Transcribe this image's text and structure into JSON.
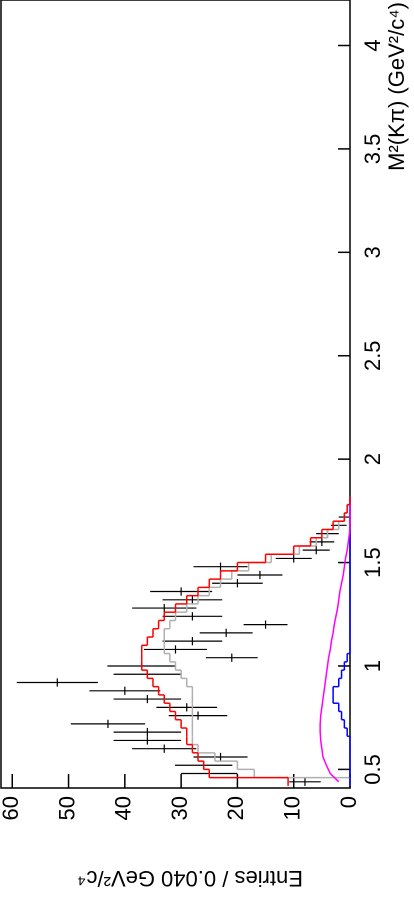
{
  "chart_data": {
    "type": "line",
    "xlabel": "M²(Kπ) (GeV²/c⁴)",
    "ylabel": "Entries / 0.040 GeV²/c⁴",
    "x": [
      0.44,
      0.48,
      0.52,
      0.56,
      0.6,
      0.64,
      0.68,
      0.72,
      0.76,
      0.8,
      0.84,
      0.88,
      0.92,
      0.96,
      1.0,
      1.04,
      1.08,
      1.12,
      1.16,
      1.2,
      1.24,
      1.28,
      1.32,
      1.36,
      1.4,
      1.44,
      1.48,
      1.52,
      1.56,
      1.6,
      1.64,
      1.68,
      1.72,
      1.76,
      1.8
    ],
    "series": [
      {
        "style": "errorbar",
        "color": "#000000",
        "values": [
          8,
          25,
          26,
          23,
          33,
          36,
          36,
          43,
          27,
          29,
          36,
          40,
          52,
          36,
          37,
          21,
          31,
          28,
          22,
          15,
          28,
          33,
          28,
          30,
          20,
          16,
          23,
          10,
          6,
          5,
          4,
          2,
          1,
          null,
          null
        ],
        "errors": [
          2.8,
          5,
          5.1,
          4.8,
          5.7,
          6,
          6,
          6.6,
          5.2,
          5.4,
          6,
          6.3,
          7.2,
          6,
          6.1,
          4.6,
          5.6,
          5.3,
          4.7,
          3.9,
          5.3,
          5.7,
          5.3,
          5.5,
          4.5,
          4,
          4.8,
          3.2,
          2.4,
          2.2,
          2,
          1.4,
          1,
          null,
          null
        ]
      },
      {
        "style": "step",
        "color": "#b0b0b0",
        "values": [
          0,
          17,
          20,
          24,
          27,
          28,
          28,
          28,
          28,
          28,
          28,
          28,
          29,
          30,
          31,
          32,
          33,
          33,
          33,
          32,
          31,
          29,
          27,
          25,
          23,
          21,
          18,
          14,
          9,
          6,
          4,
          2,
          1,
          0.5,
          0
        ]
      },
      {
        "style": "step",
        "color": "#0000ff",
        "values": [
          0,
          0,
          0,
          0,
          0,
          0,
          0.5,
          1,
          1.5,
          2,
          3,
          3,
          2,
          1.5,
          1,
          0.5,
          0,
          0,
          0,
          0,
          0,
          0,
          0,
          0,
          0,
          0,
          0,
          0,
          0,
          0,
          0,
          0,
          0,
          0,
          0
        ]
      },
      {
        "style": "line",
        "color": "#ff00ff",
        "values": [
          2,
          3.5,
          4.2,
          4.8,
          5,
          5.2,
          5.3,
          5.3,
          5.2,
          5,
          4.8,
          4.6,
          4.4,
          4.2,
          4,
          3.8,
          3.5,
          3.3,
          3,
          2.8,
          2.5,
          2.2,
          2,
          1.8,
          1.5,
          1.2,
          1,
          0.8,
          0.5,
          0.3,
          0.1,
          0,
          0,
          0,
          0
        ]
      },
      {
        "style": "step",
        "color": "#ff0000",
        "values": [
          11,
          25,
          26,
          27,
          28,
          29,
          29,
          30,
          31,
          32,
          33,
          34,
          35,
          36,
          37,
          37,
          37,
          36,
          35,
          34,
          33,
          31,
          29,
          27,
          25,
          23,
          20,
          15,
          10,
          7,
          5,
          3,
          1,
          0.5,
          0
        ]
      }
    ],
    "xlim": [
      0.41,
      4.22
    ],
    "xticks": [
      0.5,
      1,
      1.5,
      2,
      2.5,
      3,
      3.5,
      4
    ],
    "ylim": [
      0,
      62
    ],
    "yticks": [
      0,
      10,
      20,
      30,
      40,
      50,
      60
    ]
  }
}
